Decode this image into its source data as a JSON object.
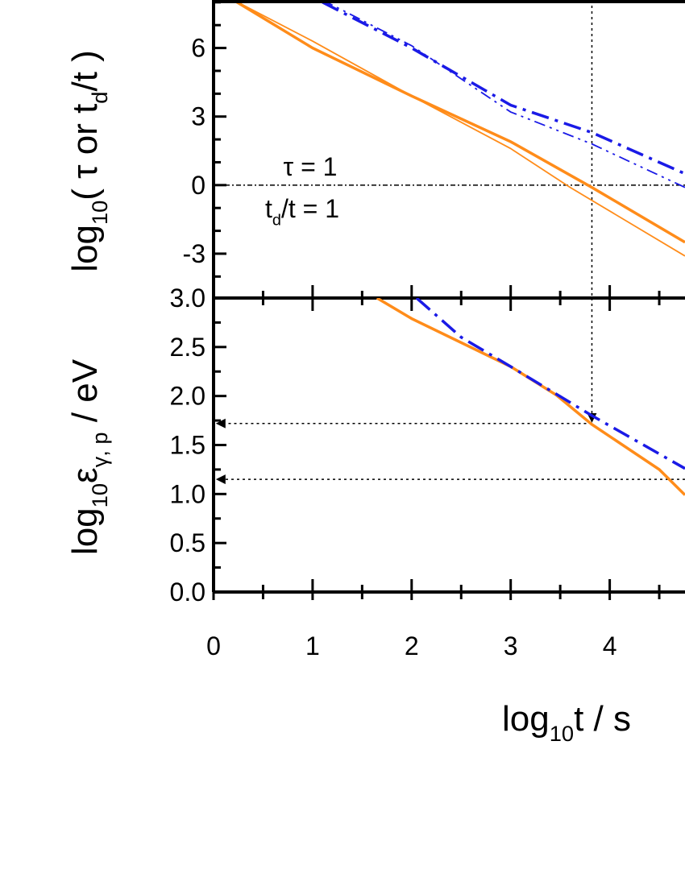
{
  "chart_data": [
    {
      "type": "line",
      "ylabel_parts": [
        "log",
        "10",
        "( τ or t",
        "d",
        "/t )"
      ],
      "annotations": [
        {
          "text": "τ = 1"
        },
        {
          "parts": [
            "t",
            "d",
            "/t = 1"
          ]
        }
      ],
      "xlim": [
        0,
        4.76
      ],
      "ylim": [
        -4.94,
        8.1
      ],
      "yticks": [
        -3,
        0,
        3,
        6
      ],
      "yminor": [
        -4,
        -2,
        -1,
        1,
        2,
        4,
        5,
        7,
        8
      ],
      "reference_y": 0,
      "reference_x": 3.82,
      "series": [
        {
          "color": "#ff8c1a",
          "width": 3.5,
          "dash": "none",
          "x": [
            0.2,
            1,
            2,
            3,
            3.82,
            4.76
          ],
          "values": [
            8.1,
            6.0,
            3.9,
            1.9,
            -0.1,
            -2.5
          ]
        },
        {
          "color": "#ff8c1a",
          "width": 1.8,
          "dash": "none",
          "x": [
            0.2,
            1,
            2,
            3,
            3.6,
            4.76
          ],
          "values": [
            8.1,
            6.3,
            3.9,
            1.6,
            -0.1,
            -3.1
          ]
        },
        {
          "color": "#1a1ae6",
          "width": 3.5,
          "dash": "dashdot",
          "x": [
            1.1,
            2,
            3,
            3.82,
            4.76
          ],
          "values": [
            8.0,
            6.0,
            3.5,
            2.3,
            0.5
          ]
        },
        {
          "color": "#1a1ae6",
          "width": 1.8,
          "dash": "dashdotdot",
          "x": [
            1.1,
            2,
            3,
            3.82,
            4.76
          ],
          "values": [
            8.1,
            6.1,
            3.2,
            1.8,
            -0.1
          ]
        }
      ]
    },
    {
      "type": "line",
      "ylabel_parts": [
        "log",
        "10",
        "ε",
        "γ, p",
        " / eV"
      ],
      "xlabel_parts": [
        "log",
        "10",
        "t / s"
      ],
      "xlim": [
        0,
        4.76
      ],
      "ylim": [
        0,
        3
      ],
      "xticks": [
        0,
        1,
        2,
        3,
        4
      ],
      "xminor": [
        0.5,
        1.5,
        2.5,
        3.5,
        4.5
      ],
      "yticks": [
        {
          "value": 0,
          "label": "0.0"
        },
        0.5,
        {
          "value": 1,
          "label": "1.0"
        },
        1.5,
        {
          "value": 2,
          "label": "2.0"
        },
        2.5,
        {
          "value": 3,
          "label": "3.0"
        }
      ],
      "yminor": [
        0.25,
        0.75,
        1.25,
        1.75,
        2.25,
        2.75
      ],
      "reference_x": 3.82,
      "reference_levels": [
        1.72,
        1.15
      ],
      "reference_ends": [
        3.82,
        4.76
      ],
      "series": [
        {
          "color": "#ff8c1a",
          "width": 3.5,
          "dash": "none",
          "x": [
            1.65,
            2,
            3,
            3.46,
            3.82,
            4.5,
            4.76
          ],
          "values": [
            3.0,
            2.79,
            2.3,
            2.01,
            1.71,
            1.25,
            0.99
          ]
        },
        {
          "color": "#1a1ae6",
          "width": 3.5,
          "dash": "dashdot",
          "x": [
            2.05,
            2.5,
            3,
            3.82,
            4.76
          ],
          "values": [
            3.0,
            2.6,
            2.3,
            1.8,
            1.26
          ]
        }
      ]
    }
  ]
}
